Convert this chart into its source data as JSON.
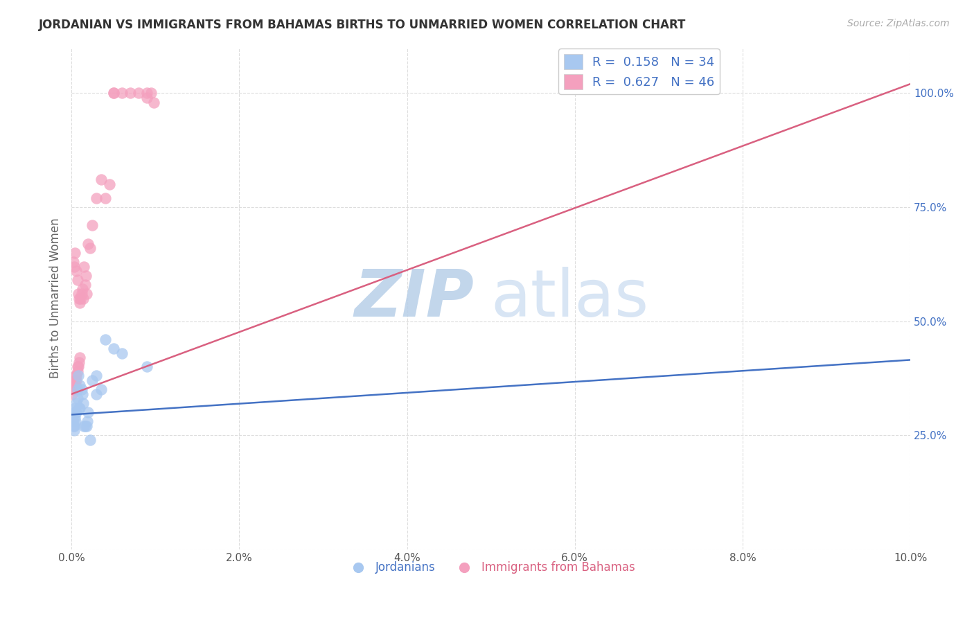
{
  "title": "JORDANIAN VS IMMIGRANTS FROM BAHAMAS BIRTHS TO UNMARRIED WOMEN CORRELATION CHART",
  "source": "Source: ZipAtlas.com",
  "ylabel": "Births to Unmarried Women",
  "r1": 0.158,
  "n1": 34,
  "r2": 0.627,
  "n2": 46,
  "color_jordan": "#a8c8f0",
  "color_bahamas": "#f4a0be",
  "line_color_jordan": "#4472c4",
  "line_color_bahamas": "#d96080",
  "watermark_zip": "ZIP",
  "watermark_atlas": "atlas",
  "watermark_color": "#ccddf5",
  "xmin": 0.0,
  "xmax": 0.1,
  "ymin": 0.0,
  "ymax": 1.1,
  "background_color": "#ffffff",
  "jordan_x": [
    0.0001,
    0.0002,
    0.0002,
    0.0003,
    0.0003,
    0.0004,
    0.0004,
    0.0005,
    0.0005,
    0.0006,
    0.0006,
    0.0007,
    0.0007,
    0.0008,
    0.0009,
    0.001,
    0.001,
    0.0012,
    0.0013,
    0.0014,
    0.0015,
    0.0016,
    0.0018,
    0.0019,
    0.002,
    0.0022,
    0.0025,
    0.003,
    0.003,
    0.0035,
    0.004,
    0.005,
    0.006,
    0.009
  ],
  "jordan_y": [
    0.3,
    0.28,
    0.27,
    0.27,
    0.26,
    0.31,
    0.29,
    0.3,
    0.28,
    0.32,
    0.3,
    0.33,
    0.35,
    0.38,
    0.31,
    0.31,
    0.36,
    0.35,
    0.34,
    0.32,
    0.27,
    0.27,
    0.27,
    0.28,
    0.3,
    0.24,
    0.37,
    0.34,
    0.38,
    0.35,
    0.46,
    0.44,
    0.43,
    0.4
  ],
  "bahamas_x": [
    0.0001,
    0.0001,
    0.0002,
    0.0002,
    0.0003,
    0.0003,
    0.0004,
    0.0004,
    0.0005,
    0.0005,
    0.0006,
    0.0006,
    0.0006,
    0.0007,
    0.0007,
    0.0007,
    0.0008,
    0.0008,
    0.0009,
    0.0009,
    0.001,
    0.001,
    0.0011,
    0.0012,
    0.0013,
    0.0014,
    0.0015,
    0.0016,
    0.0017,
    0.0018,
    0.002,
    0.0022,
    0.0025,
    0.003,
    0.0035,
    0.004,
    0.0045,
    0.005,
    0.005,
    0.006,
    0.007,
    0.008,
    0.009,
    0.009,
    0.0095,
    0.0098
  ],
  "bahamas_y": [
    0.35,
    0.34,
    0.63,
    0.35,
    0.36,
    0.62,
    0.37,
    0.65,
    0.36,
    0.38,
    0.37,
    0.38,
    0.61,
    0.39,
    0.59,
    0.4,
    0.4,
    0.56,
    0.41,
    0.55,
    0.42,
    0.54,
    0.55,
    0.56,
    0.57,
    0.55,
    0.62,
    0.58,
    0.6,
    0.56,
    0.67,
    0.66,
    0.71,
    0.77,
    0.81,
    0.77,
    0.8,
    1.0,
    1.0,
    1.0,
    1.0,
    1.0,
    0.99,
    1.0,
    1.0,
    0.98
  ],
  "line_jordan_x0": 0.0,
  "line_jordan_x1": 0.1,
  "line_jordan_y0": 0.295,
  "line_jordan_y1": 0.415,
  "line_bahamas_x0": 0.0,
  "line_bahamas_x1": 0.1,
  "line_bahamas_y0": 0.34,
  "line_bahamas_y1": 1.02
}
